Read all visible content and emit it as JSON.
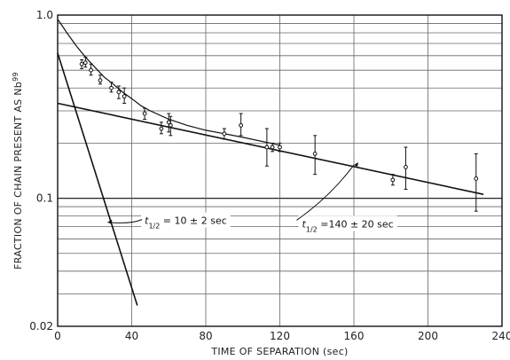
{
  "chart_data": {
    "type": "scatter",
    "scale": {
      "x": "linear",
      "y": "log"
    },
    "xlim": [
      0,
      240
    ],
    "ylim": [
      0.02,
      1.0
    ],
    "grid": true,
    "xlabel": "TIME OF SEPARATION (sec)",
    "ylabel": "FRACTION OF CHAIN PRESENT AS Nb",
    "ylabel_superscript": "99",
    "x_ticks": [
      0,
      40,
      80,
      120,
      160,
      200,
      240
    ],
    "x_tick_labels": [
      "0",
      "40",
      "80",
      "120",
      "160",
      "200",
      "240"
    ],
    "y_ticks": [
      0.02,
      0.1,
      1.0
    ],
    "y_tick_labels": [
      "0.02",
      "0.1",
      "1.0"
    ],
    "points": [
      {
        "x": 13,
        "y": 0.54,
        "yerr_low": 0.51,
        "yerr_high": 0.57
      },
      {
        "x": 15,
        "y": 0.55,
        "yerr_low": 0.52,
        "yerr_high": 0.59
      },
      {
        "x": 18,
        "y": 0.5,
        "yerr_low": 0.47,
        "yerr_high": 0.54
      },
      {
        "x": 23,
        "y": 0.44,
        "yerr_low": 0.42,
        "yerr_high": 0.47
      },
      {
        "x": 29,
        "y": 0.4,
        "yerr_low": 0.38,
        "yerr_high": 0.43
      },
      {
        "x": 33,
        "y": 0.38,
        "yerr_low": 0.35,
        "yerr_high": 0.41
      },
      {
        "x": 36,
        "y": 0.36,
        "yerr_low": 0.33,
        "yerr_high": 0.4
      },
      {
        "x": 47,
        "y": 0.29,
        "yerr_low": 0.27,
        "yerr_high": 0.31
      },
      {
        "x": 56,
        "y": 0.24,
        "yerr_low": 0.225,
        "yerr_high": 0.26
      },
      {
        "x": 60,
        "y": 0.26,
        "yerr_low": 0.23,
        "yerr_high": 0.29
      },
      {
        "x": 61,
        "y": 0.25,
        "yerr_low": 0.22,
        "yerr_high": 0.28
      },
      {
        "x": 90,
        "y": 0.225,
        "yerr_low": 0.21,
        "yerr_high": 0.24
      },
      {
        "x": 99,
        "y": 0.25,
        "yerr_low": 0.22,
        "yerr_high": 0.29
      },
      {
        "x": 113,
        "y": 0.19,
        "yerr_low": 0.15,
        "yerr_high": 0.24
      },
      {
        "x": 116,
        "y": 0.19,
        "yerr_low": 0.18,
        "yerr_high": 0.2
      },
      {
        "x": 120,
        "y": 0.19,
        "yerr_low": 0.18,
        "yerr_high": 0.2
      },
      {
        "x": 139,
        "y": 0.175,
        "yerr_low": 0.135,
        "yerr_high": 0.22
      },
      {
        "x": 181,
        "y": 0.126,
        "yerr_low": 0.118,
        "yerr_high": 0.135
      },
      {
        "x": 188,
        "y": 0.148,
        "yerr_low": 0.112,
        "yerr_high": 0.19
      },
      {
        "x": 226,
        "y": 0.128,
        "yerr_low": 0.085,
        "yerr_high": 0.175
      }
    ],
    "lines": [
      {
        "x": [
          0,
          43
        ],
        "y": [
          0.62,
          0.026
        ]
      },
      {
        "x": [
          0,
          230
        ],
        "y": [
          0.33,
          0.105
        ]
      },
      {
        "x": [
          0,
          5,
          10,
          15,
          20,
          25,
          30,
          35,
          40,
          45,
          50,
          60,
          70,
          80,
          90,
          100,
          120
        ],
        "y": [
          0.95,
          0.8,
          0.68,
          0.59,
          0.52,
          0.46,
          0.42,
          0.38,
          0.35,
          0.32,
          0.3,
          0.27,
          0.25,
          0.235,
          0.225,
          0.215,
          0.195
        ]
      }
    ],
    "annotations": [
      {
        "t": "t",
        "sub": "1/2",
        "rest": " = 10 ± 2 sec",
        "x": 47,
        "y": 0.074,
        "arrow_to": [
          27,
          0.074
        ]
      },
      {
        "t": "t",
        "sub": "1/2",
        "rest": " =140 ± 20 sec",
        "x": 132,
        "y": 0.071,
        "arrow_to": [
          160,
          0.152
        ]
      }
    ]
  }
}
